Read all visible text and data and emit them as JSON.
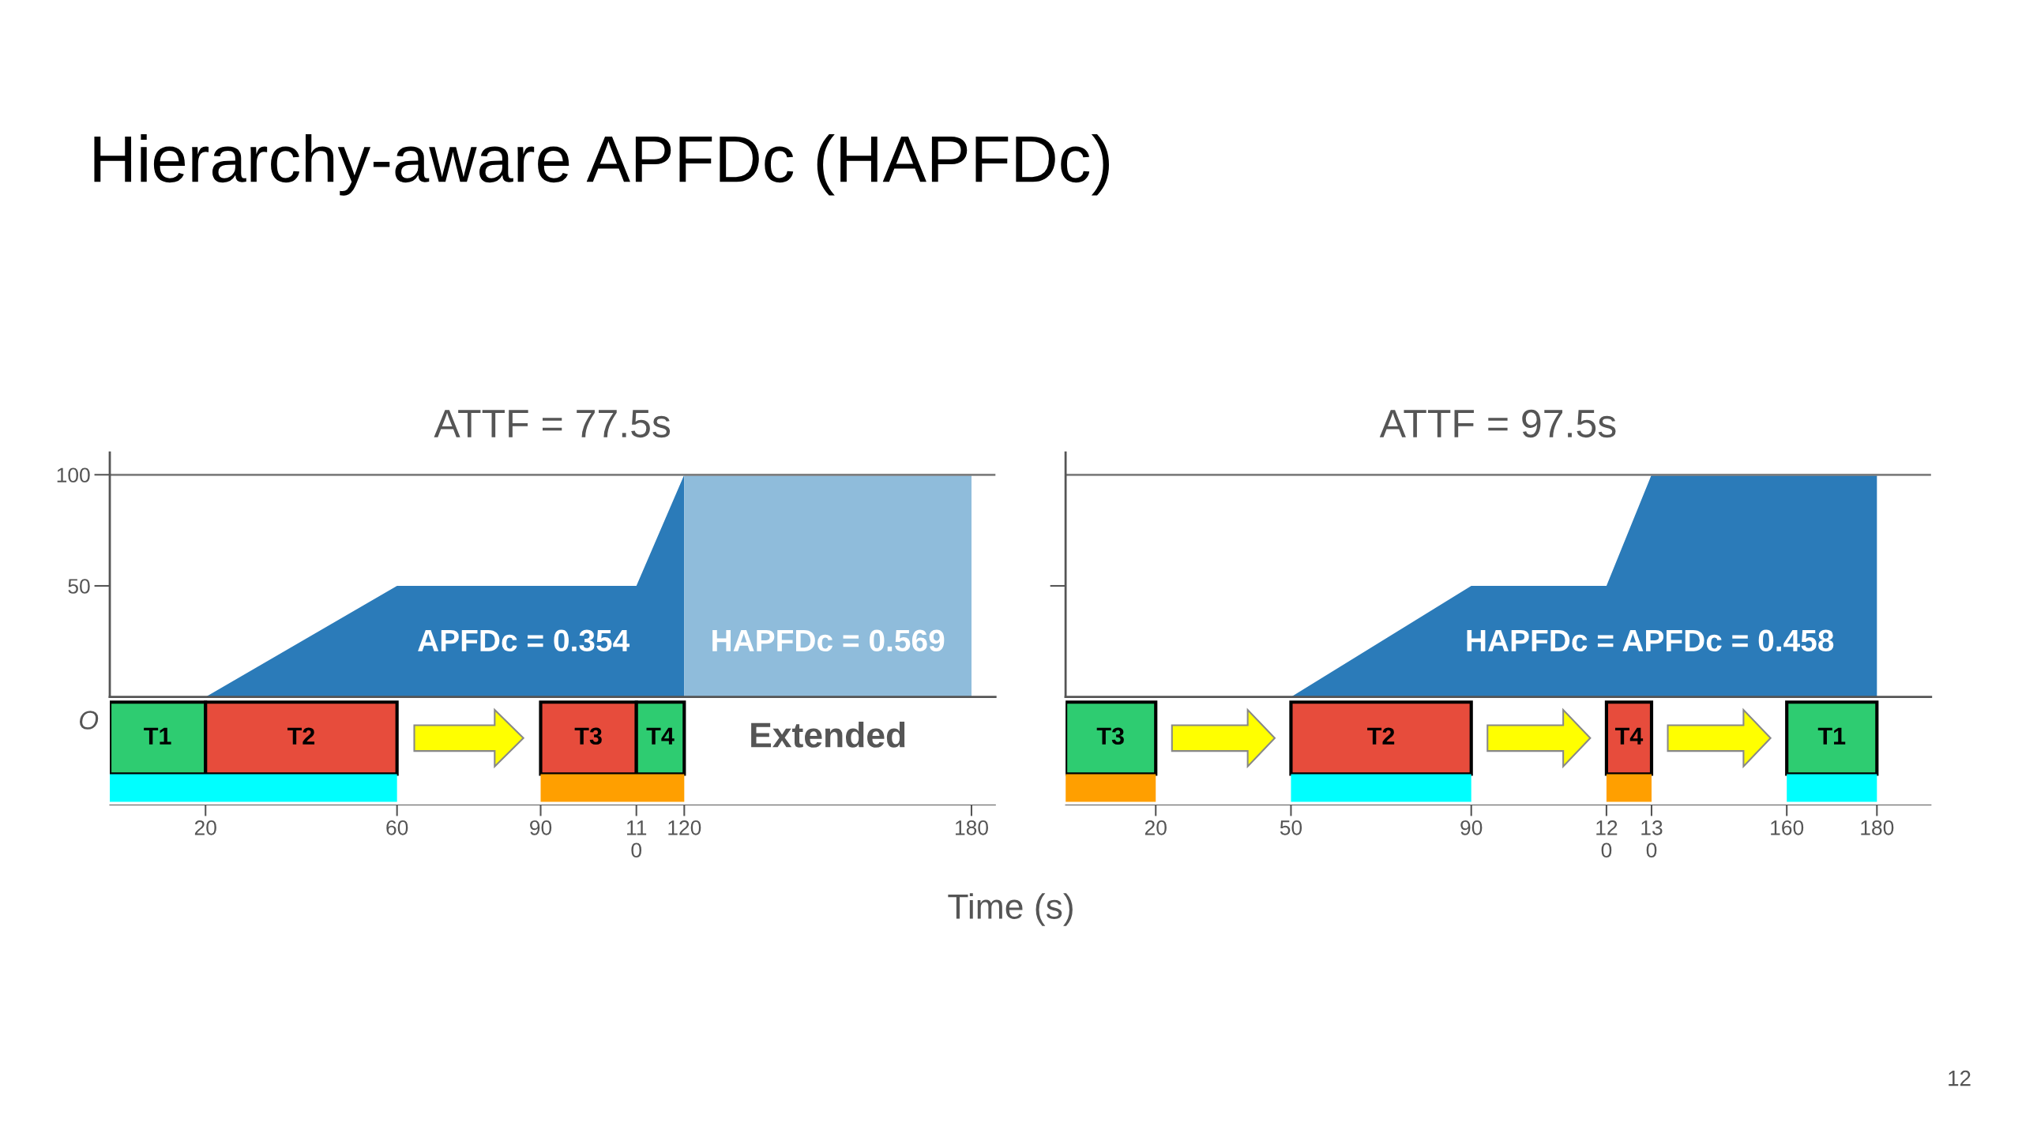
{
  "chart_data": [
    {
      "type": "area",
      "title": "ATTF = 77.5s",
      "xlim": [
        0,
        185
      ],
      "ylim": [
        0,
        110
      ],
      "yticks": [
        50,
        100
      ],
      "tick_labels": "y",
      "series": [
        {
          "color": "#2b7bb9",
          "x": [
            0,
            20,
            60,
            110,
            120
          ],
          "values": [
            0,
            0,
            50,
            50,
            100
          ]
        },
        {
          "color": "#8fbcdb",
          "x": [
            120,
            180
          ],
          "values": [
            100,
            100
          ]
        }
      ],
      "ref_lines": [
        {
          "axis": "y",
          "value": 100,
          "color": "#7f7f7f"
        }
      ],
      "annotations": [
        {
          "text": "O",
          "x": 0,
          "y": 0
        },
        "APFDc = 0.354",
        "HAPFDc = 0.569"
      ]
    },
    {
      "type": "bar",
      "orientation": "horizontal",
      "title": "Hierarchy-aware APFDc (HAPFDc)",
      "xlabel": "Time (s)",
      "categories": [
        null
      ],
      "xlim": [
        0,
        185
      ],
      "xticks": [
        20,
        60,
        90,
        {
          "value": 110,
          "label": "11\n0"
        },
        120,
        180
      ],
      "tick_labels": "x",
      "series": [
        {
          "name": "T1",
          "color": "#2ecc71",
          "base": [
            0
          ],
          "values": [
            20
          ]
        },
        {
          "name": "T2",
          "color": "#e74c3c",
          "base": [
            20
          ],
          "values": [
            40
          ]
        },
        {
          "name": "T3",
          "color": "#e74c3c",
          "base": [
            90
          ],
          "values": [
            20
          ]
        },
        {
          "name": "T4",
          "color": "#2ecc71",
          "base": [
            110
          ],
          "values": [
            10
          ]
        }
      ],
      "bands": [
        {
          "axis": "x",
          "from": 0,
          "to": 60,
          "color": "#00ffff"
        },
        {
          "axis": "x",
          "from": 90,
          "to": 120,
          "color": "#ff9f00"
        }
      ],
      "annotations": [
        "Extended"
      ]
    },
    {
      "type": "area",
      "title": "ATTF = 97.5s",
      "xlim": [
        0,
        192
      ],
      "ylim": [
        0,
        110
      ],
      "yticks": [
        {
          "value": 50,
          "label": null
        }
      ],
      "tick_labels": false,
      "series": [
        {
          "color": "#2b7bb9",
          "x": [
            0,
            50,
            90,
            120,
            130,
            180
          ],
          "values": [
            0,
            0,
            50,
            50,
            100,
            100
          ]
        }
      ],
      "ref_lines": [
        {
          "axis": "y",
          "value": 100,
          "color": "#7f7f7f"
        }
      ],
      "annotations": [
        "HAPFDc = APFDc = 0.458",
        "12"
      ]
    },
    {
      "type": "bar",
      "orientation": "horizontal",
      "categories": [
        null
      ],
      "xlim": [
        0,
        192
      ],
      "xticks": [
        20,
        50,
        90,
        {
          "value": 120,
          "label": "12\n0"
        },
        {
          "value": 130,
          "label": "13\n0"
        },
        160,
        180
      ],
      "tick_labels": "x",
      "series": [
        {
          "name": "T3",
          "color": "#2ecc71",
          "base": [
            0
          ],
          "values": [
            20
          ]
        },
        {
          "name": "T2",
          "color": "#e74c3c",
          "base": [
            50
          ],
          "values": [
            40
          ]
        },
        {
          "name": "T4",
          "color": "#e74c3c",
          "base": [
            120
          ],
          "values": [
            10
          ]
        },
        {
          "name": "T1",
          "color": "#2ecc71",
          "base": [
            160
          ],
          "values": [
            20
          ]
        }
      ],
      "bands": [
        {
          "axis": "x",
          "from": 0,
          "to": 20,
          "color": "#ff9f00"
        },
        {
          "axis": "x",
          "from": 50,
          "to": 90,
          "color": "#00ffff"
        },
        {
          "axis": "x",
          "from": 120,
          "to": 130,
          "color": "#ff9f00"
        },
        {
          "axis": "x",
          "from": 160,
          "to": 180,
          "color": "#00ffff"
        }
      ]
    }
  ]
}
